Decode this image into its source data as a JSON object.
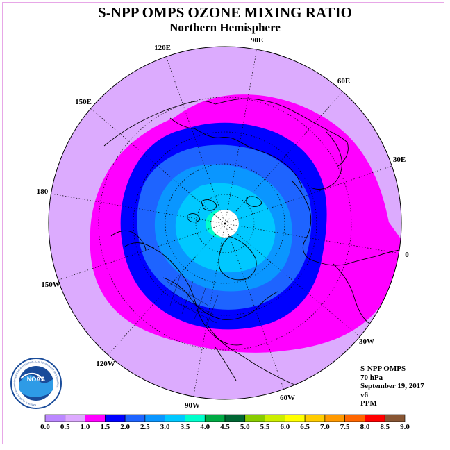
{
  "header": {
    "title": "S-NPP OMPS OZONE MIXING RATIO",
    "subtitle": "Northern Hemisphere"
  },
  "map": {
    "projection": "north-polar-stereographic",
    "longitude_labels": [
      "90E",
      "60E",
      "30E",
      "0",
      "30W",
      "60W",
      "90W",
      "120W",
      "150W",
      "180",
      "150E",
      "120E"
    ],
    "center_missing": "white",
    "regions": [
      {
        "range": "1.0-1.5",
        "color": "#ff00ff",
        "description": "outer band"
      },
      {
        "range": "1.5-2.0",
        "color": "#0000ff"
      },
      {
        "range": "2.0-2.5",
        "color": "#1e64ff"
      },
      {
        "range": "2.5-3.0",
        "color": "#0a96ff"
      },
      {
        "range": "3.0-3.5",
        "color": "#00c8ff"
      },
      {
        "range": "3.5-4.0",
        "color": "#00ffcc"
      }
    ]
  },
  "info": {
    "line1": "S-NPP OMPS",
    "line2": "70 hPa",
    "line3": "September 19, 2017",
    "line4": "v6",
    "line5": "PPM"
  },
  "colorbar": {
    "labels": [
      "0.0",
      "0.5",
      "1.0",
      "1.5",
      "2.0",
      "2.5",
      "3.0",
      "3.5",
      "4.0",
      "4.5",
      "5.0",
      "5.5",
      "6.0",
      "6.5",
      "7.0",
      "7.5",
      "8.0",
      "8.5",
      "9.0"
    ],
    "colors": [
      "#bb88ff",
      "#ddaaff",
      "#ff00ff",
      "#0000ff",
      "#1e64ff",
      "#0a96ff",
      "#00c8ff",
      "#00ffcc",
      "#00aa44",
      "#006633",
      "#88cc00",
      "#ccee00",
      "#ffff00",
      "#ffcc00",
      "#ff9900",
      "#ff6600",
      "#ff0000",
      "#885533"
    ]
  },
  "logo": {
    "center_text": "NOAA",
    "ring_text": "NATIONAL OCEANIC AND ATMOSPHERIC ADMINISTRATION · U.S. DEPARTMENT OF COMMERCE"
  }
}
